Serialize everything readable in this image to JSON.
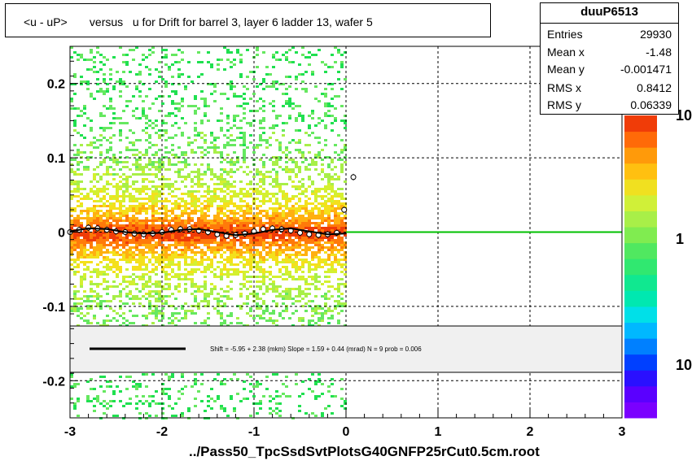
{
  "title": {
    "text": "<u - uP>       versus   u for Drift for barrel 3, layer 6 ladder 13, wafer 5"
  },
  "stats": {
    "name": "duuP6513",
    "rows": [
      {
        "label": "Entries",
        "value": "29930"
      },
      {
        "label": "Mean x",
        "value": "-1.48"
      },
      {
        "label": "Mean y",
        "value": "-0.001471"
      },
      {
        "label": "RMS x",
        "value": "0.8412"
      },
      {
        "label": "RMS y",
        "value": "0.06339"
      }
    ]
  },
  "fit_legend": "Shift =    -5.95 + 2.38 (mkm) Slope =     1.59 + 0.44 (mrad)  N = 9 prob = 0.006",
  "footer": "../Pass50_TpcSsdSvtPlotsG40GNFP25rCut0.5cm.root",
  "colorbar_labels": [
    "10",
    "1",
    "10"
  ],
  "colors": {
    "fit_curve": "#000000",
    "zero_line": "#00c000",
    "legend_fill": "#f0f0f0"
  },
  "chart_data": {
    "type": "heatmap",
    "xlim": [
      -3,
      3
    ],
    "ylim": [
      -0.25,
      0.25
    ],
    "xticks": [
      "-3",
      "-2",
      "-1",
      "0",
      "1",
      "2",
      "3"
    ],
    "yticks": [
      "-0.2",
      "-0.1",
      "0",
      "0.1",
      "0.2"
    ],
    "grid": true,
    "occupied_u_range": [
      -3.0,
      0.0
    ],
    "profile_points": {
      "x": [
        -3.0,
        -2.9,
        -2.8,
        -2.7,
        -2.6,
        -2.5,
        -2.4,
        -2.3,
        -2.2,
        -2.1,
        -2.0,
        -1.9,
        -1.8,
        -1.7,
        -1.6,
        -1.5,
        -1.4,
        -1.3,
        -1.2,
        -1.1,
        -1.0,
        -0.9,
        -0.8,
        -0.7,
        -0.6,
        -0.5,
        -0.4,
        -0.3,
        -0.2,
        -0.1,
        -0.02,
        0.08
      ],
      "y": [
        0.0,
        0.003,
        0.006,
        0.005,
        0.003,
        0.001,
        0.0,
        -0.002,
        -0.003,
        -0.002,
        0.0,
        0.003,
        0.004,
        0.004,
        0.002,
        0.0,
        -0.003,
        -0.005,
        -0.004,
        -0.002,
        0.001,
        0.004,
        0.005,
        0.004,
        0.002,
        -0.001,
        -0.003,
        -0.004,
        -0.003,
        -0.001,
        0.03,
        0.074
      ]
    },
    "fit_curve": {
      "x": [
        -3.0,
        -2.8,
        -2.6,
        -2.4,
        -2.2,
        -2.0,
        -1.8,
        -1.6,
        -1.4,
        -1.2,
        -1.0,
        -0.8,
        -0.6,
        -0.4,
        -0.2,
        0.0
      ],
      "y": [
        0.001,
        0.005,
        0.004,
        0.0,
        -0.002,
        -0.001,
        0.003,
        0.004,
        0.0,
        -0.004,
        -0.002,
        0.003,
        0.005,
        0.001,
        -0.003,
        -0.002
      ]
    }
  }
}
